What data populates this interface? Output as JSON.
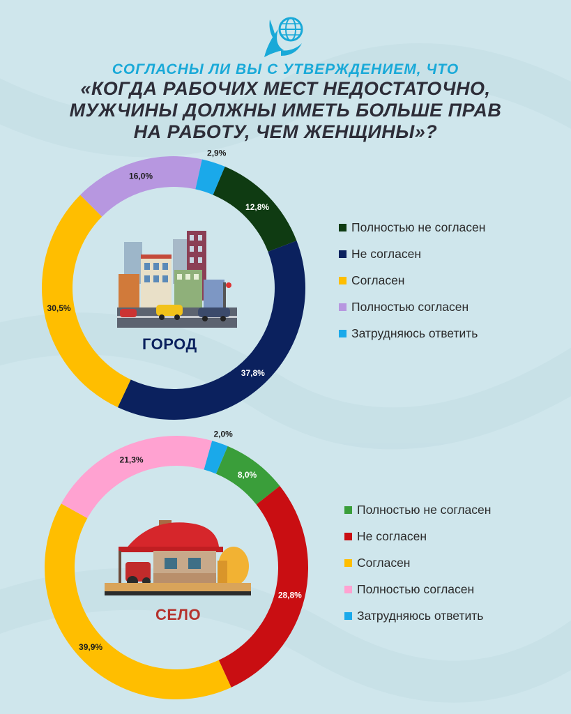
{
  "title": {
    "line1": "СОГЛАСНЫ ЛИ ВЫ С УТВЕРЖДЕНИЕМ, ЧТО",
    "line2": "«КОГДА РАБОЧИХ МЕСТ НЕДОСТАТОЧНО,",
    "line3": "МУЖЧИНЫ ДОЛЖНЫ ИМЕТЬ БОЛЬШЕ ПРАВ",
    "line4": "НА РАБОТУ, ЧЕМ ЖЕНЩИНЫ»?"
  },
  "icons": {
    "logo": "eagle-globe-icon",
    "city": "city-buildings-icon",
    "village": "village-house-icon"
  },
  "chart_data": [
    {
      "type": "donut",
      "center_label": "ГОРОД",
      "categories": [
        "Полностью  не согласен",
        "Не согласен",
        "Согласен",
        "Полностью согласен",
        "Затрудняюсь ответить"
      ],
      "values": [
        12.8,
        37.8,
        30.5,
        16.0,
        2.9
      ],
      "labels": [
        "12,8%",
        "37,8%",
        "30,5%",
        "16,0%",
        "2,9%"
      ],
      "colors": [
        "#0f3b12",
        "#0b215e",
        "#ffbe00",
        "#b797e0",
        "#1aa9ea"
      ],
      "label_color": "#0b215e",
      "legend_position": "right"
    },
    {
      "type": "donut",
      "center_label": "СЕЛО",
      "categories": [
        "Полностью  не согласен",
        "Не согласен",
        "Согласен",
        "Полностью согласен",
        "Затрудняюсь ответить"
      ],
      "values": [
        8.0,
        28.8,
        39.9,
        21.3,
        2.0
      ],
      "labels": [
        "8,0%",
        "28,8%",
        "39,9%",
        "21,3%",
        "2,0%"
      ],
      "colors": [
        "#3a9e3a",
        "#c90e12",
        "#ffbe00",
        "#ffa2d1",
        "#1aa9ea"
      ],
      "label_color": "#b5332e",
      "legend_position": "right"
    }
  ]
}
